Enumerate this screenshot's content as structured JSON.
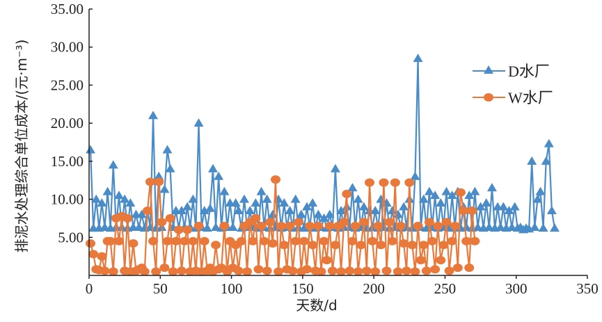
{
  "chart_data": {
    "type": "line",
    "title": "",
    "xlabel": "天数/d",
    "ylabel": "排泥水处理综合单位成本/(元·m⁻³)",
    "xlim": [
      0,
      350
    ],
    "ylim": [
      0,
      35
    ],
    "xticks": [
      "0",
      "50",
      "100",
      "150",
      "200",
      "250",
      "300",
      "350"
    ],
    "xtick_values": [
      0,
      50,
      100,
      150,
      200,
      250,
      300,
      350
    ],
    "yticks": [
      "5.00",
      "10.00",
      "15.00",
      "20.00",
      "25.00",
      "30.00",
      "35.00"
    ],
    "ytick_values": [
      5,
      10,
      15,
      20,
      25,
      30,
      35
    ],
    "grid": false,
    "legend_position": "top-right",
    "series": [
      {
        "name": "D水厂",
        "color": "#4a8cc8",
        "marker": "triangle",
        "x_start": 1,
        "x_step": 2,
        "values": [
          16.5,
          6.2,
          10,
          6.2,
          9.5,
          6.3,
          11,
          6.2,
          14.5,
          6.3,
          10.5,
          6.3,
          10,
          6.2,
          9.5,
          6.3,
          8,
          6.3,
          8,
          6.2,
          8.5,
          6.3,
          21,
          6.2,
          13,
          6.3,
          11.3,
          16.5,
          14,
          6.3,
          8.5,
          6.2,
          8.5,
          6.3,
          9,
          6.3,
          10,
          6.2,
          20,
          6.3,
          8.5,
          6.2,
          8.8,
          14,
          6.3,
          13,
          6.2,
          11,
          6.3,
          9.5,
          6.3,
          9.5,
          8.5,
          6.2,
          10,
          6.3,
          8.5,
          6.3,
          9.5,
          6.2,
          11,
          6.3,
          10,
          6.2,
          8,
          6.3,
          10,
          6.2,
          9.5,
          6.3,
          8.5,
          6.2,
          10,
          6.3,
          8,
          6.2,
          9,
          6.3,
          9.5,
          6.2,
          8,
          6.3,
          7.5,
          6.2,
          8,
          6.3,
          14,
          6.2,
          8.5,
          6.3,
          9,
          6.3,
          11.5,
          6.2,
          10,
          6.3,
          9,
          6.2,
          8.5,
          6.3,
          8.5,
          6.2,
          10,
          6.3,
          9.5,
          6.2,
          8.5,
          6.3,
          8,
          6.2,
          9,
          6.3,
          10,
          6.2,
          13,
          28.5,
          6.3,
          10,
          6.2,
          11,
          6.3,
          10.5,
          6.2,
          9.5,
          6.3,
          11,
          6.2,
          10.5,
          6.3,
          11,
          6.2,
          9,
          6.3,
          10.5,
          6.2,
          11,
          6.3,
          9,
          6.2,
          9.5,
          6.3,
          11.5,
          6.2,
          9,
          6.3,
          9,
          6.2,
          8.5,
          6.3,
          9,
          6.2,
          6.3,
          6,
          6.2,
          6.1,
          15,
          6.3,
          10,
          11,
          6.2,
          15,
          17.3,
          8.5,
          6.2
        ]
      },
      {
        "name": "W水厂",
        "color": "#e8793a",
        "marker": "circle",
        "x_start": 1,
        "x_step": 2,
        "values": [
          4.2,
          2.8,
          0.8,
          0.7,
          2.5,
          0.6,
          4.5,
          4.5,
          0.5,
          7.5,
          4.5,
          7.8,
          0.6,
          7.5,
          0.5,
          4.2,
          0.6,
          0.8,
          1,
          0.5,
          8.5,
          12.3,
          4.5,
          0.5,
          12.3,
          7,
          1,
          4.5,
          7.5,
          0.5,
          4.5,
          6,
          0.6,
          4.5,
          6,
          0.5,
          4.5,
          0.6,
          6.5,
          0.5,
          4.5,
          0.6,
          1,
          0.5,
          4,
          0.8,
          1,
          6.5,
          0.5,
          4.5,
          1,
          4,
          0.6,
          4.5,
          6.5,
          0.5,
          7,
          4.5,
          7.5,
          0.8,
          6.5,
          4.5,
          0.6,
          7,
          4.2,
          12.6,
          0.5,
          6.5,
          4,
          0.8,
          6.5,
          0.6,
          4.5,
          7,
          0.5,
          4.5,
          0.8,
          6.5,
          4,
          0.6,
          6.5,
          0.5,
          4.5,
          2,
          6.5,
          0.6,
          4,
          6.5,
          0.5,
          7,
          10.7,
          0.6,
          4.5,
          6.5,
          0.5,
          4,
          7,
          0.6,
          12.2,
          4.5,
          0.5,
          6.5,
          4,
          12.2,
          0.6,
          7,
          4.5,
          12.2,
          0.5,
          6.5,
          4.2,
          0.6,
          12.2,
          4,
          0.5,
          6.5,
          2,
          4,
          0.6,
          7,
          4.5,
          0.8,
          6.5,
          2,
          4,
          7,
          0.6,
          4.5,
          6.5,
          1,
          10.9,
          8.5,
          4.5,
          1,
          8.5,
          4.5
        ]
      }
    ]
  }
}
